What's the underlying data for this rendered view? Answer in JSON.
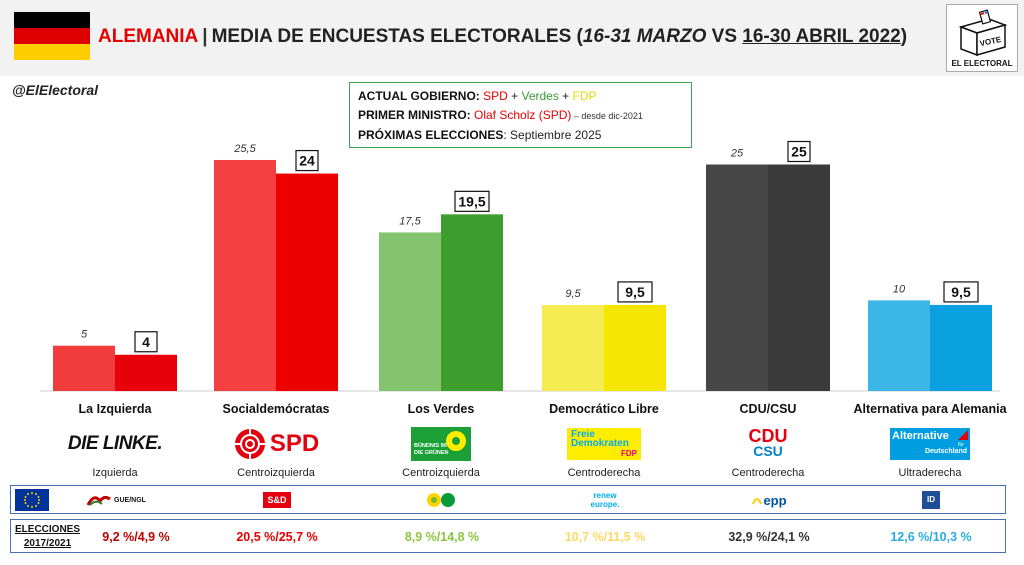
{
  "header": {
    "country": "ALEMANIA",
    "separator": "|",
    "title": "MEDIA DE ENCUESTAS ELECTORALES",
    "paren_open": "(",
    "period_1": "16-31 MARZO",
    "vs": " VS ",
    "period_2": "16-30 ABRIL 2022",
    "paren_close": ")",
    "flag_colors": [
      "#000000",
      "#dd0000",
      "#ffce00"
    ],
    "logo_box_text": "VOTE",
    "logo_label": "EL ELECTORAL"
  },
  "handle": "@ElElectoral",
  "info": {
    "gov_label": "ACTUAL GOBIERNO: ",
    "gov_party_1": "SPD",
    "plus": " + ",
    "gov_party_2": "Verdes",
    "gov_party_3": "FDP",
    "pm_label": "PRIMER MINISTRO: ",
    "pm_name": "Olaf Scholz (SPD)",
    "pm_since": " – desde dic-2021",
    "next_label": "PRÓXIMAS ELECCIONES",
    "next_colon": ": ",
    "next_value": "Septiembre 2025"
  },
  "chart_data": {
    "type": "bar",
    "categories": [
      "La Izquierda",
      "Socialdemócratas",
      "Los Verdes",
      "Democrático Libre",
      "CDU/CSU",
      "Alternativa para Alemania"
    ],
    "series": [
      {
        "name": "16-31 MARZO",
        "values": [
          5,
          25.5,
          17.5,
          9.5,
          25,
          10
        ],
        "labels": [
          "5",
          "25,5",
          "17,5",
          "9,5",
          "25",
          "10"
        ]
      },
      {
        "name": "16-30 ABRIL 2022",
        "values": [
          4,
          24,
          19.5,
          9.5,
          25,
          9.5
        ],
        "labels": [
          "4",
          "24",
          "19,5",
          "9,5",
          "25",
          "9,5"
        ]
      }
    ],
    "ylim": [
      0,
      27
    ],
    "colors_old": [
      "#f03c3c",
      "#f44040",
      "#85c46e",
      "#f5ec52",
      "#474747",
      "#3cb6e6"
    ],
    "colors_new": [
      "#e8000b",
      "#ee0000",
      "#3d9e2e",
      "#f5e600",
      "#3a3a3a",
      "#0aa0e0"
    ]
  },
  "parties": [
    {
      "name": "La Izquierda",
      "logo": "DIE LINKE.",
      "ideology": "Izquierda",
      "eu_group": "GUE/NGL",
      "elections": "9,2 %/4,9 %",
      "elections_color": "#c00000"
    },
    {
      "name": "Socialdemócratas",
      "logo": "SPD",
      "ideology": "Centroizquierda",
      "eu_group": "S&D",
      "elections": "20,5 %/25,7 %",
      "elections_color": "#e60000"
    },
    {
      "name": "Los Verdes",
      "logo_line_1": "BÜNDNIS 90",
      "logo_line_2": "DIE GRÜNEN",
      "ideology": "Centroizquierda",
      "eu_group": "Greens/EFA",
      "elections": "8,9 %/14,8 %",
      "elections_color": "#8cc63f"
    },
    {
      "name": "Democrático Libre",
      "logo_line_1": "Freie",
      "logo_line_2": "Demokraten",
      "logo_line_3": "FDP",
      "ideology": "Centroderecha",
      "eu_group_line_1": "renew",
      "eu_group_line_2": "europe.",
      "elections": "10,7 %/11,5 %",
      "elections_color": "#ffd966"
    },
    {
      "name": "CDU/CSU",
      "logo_line_1": "CDU",
      "logo_line_2": "CSU",
      "ideology": "Centroderecha",
      "eu_group": "epp",
      "elections": "32,9 %/24,1 %",
      "elections_color": "#333333"
    },
    {
      "name": "Alternativa para Alemania",
      "logo_line_1": "Alternative",
      "logo_line_2": "für",
      "logo_line_3": "Deutschland",
      "ideology": "Ultraderecha",
      "eu_group": "ID",
      "elections": "12,6 %/10,3 %",
      "elections_color": "#29abe2"
    }
  ],
  "elections_label_line_1": "ELECCIONES",
  "elections_label_line_2": "2017/2021"
}
